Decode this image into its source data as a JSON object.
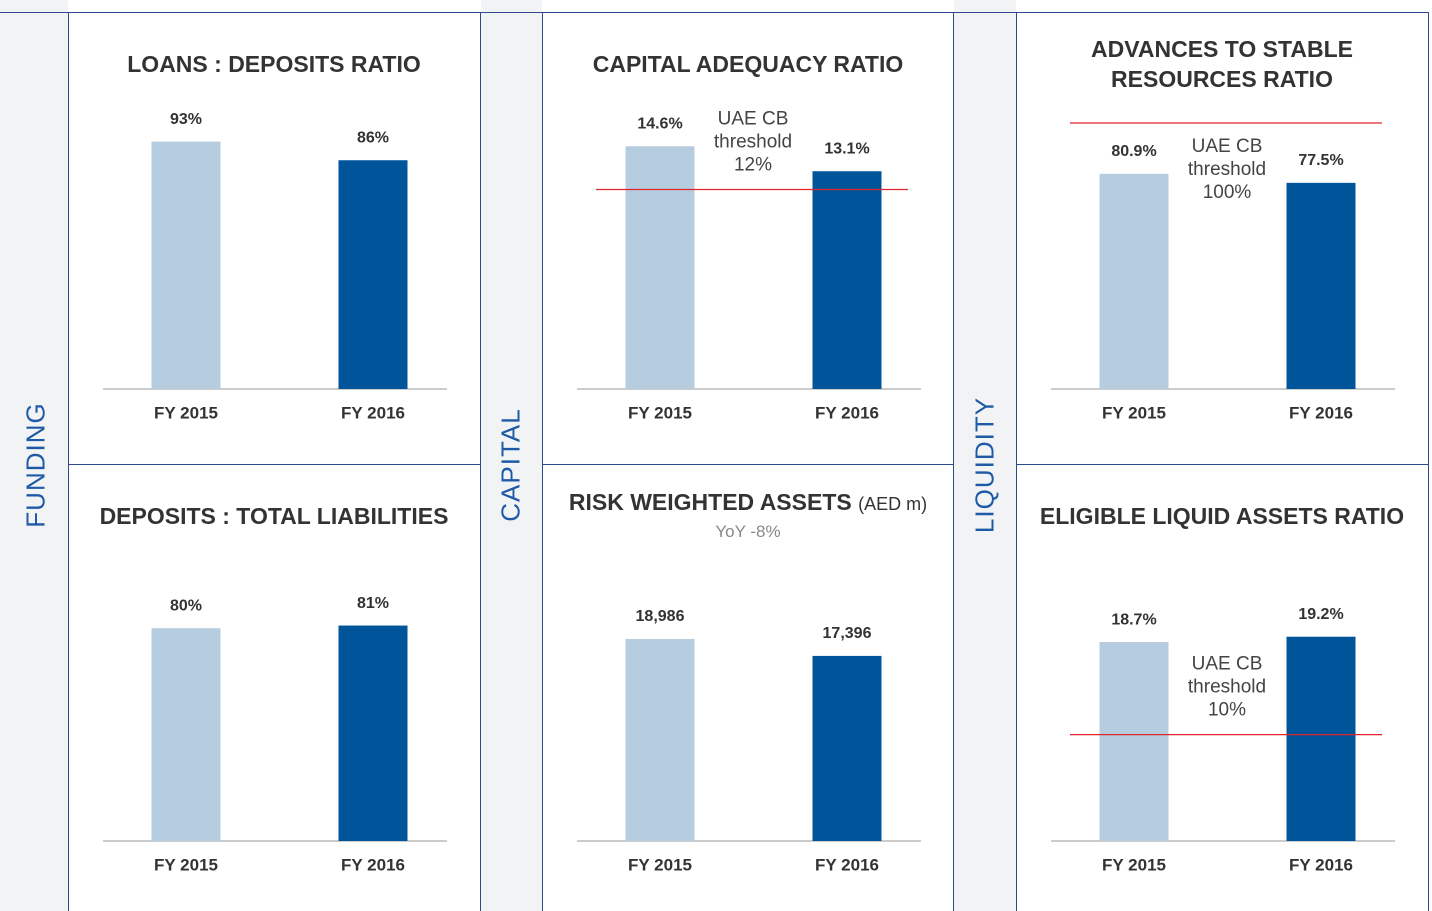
{
  "sections": [
    "FUNDING",
    "CAPITAL",
    "LIQUIDITY"
  ],
  "chart_data": [
    {
      "type": "bar",
      "title": "LOANS : DEPOSITS RATIO",
      "categories": [
        "FY 2015",
        "FY 2016"
      ],
      "values": [
        93,
        86
      ],
      "value_labels": [
        "93%",
        "86%"
      ],
      "colors": [
        "#b6cde0",
        "#005499"
      ],
      "ylim": [
        0,
        100
      ]
    },
    {
      "type": "bar",
      "title": "DEPOSITS : TOTAL LIABILITIES",
      "categories": [
        "FY 2015",
        "FY 2016"
      ],
      "values": [
        80,
        81
      ],
      "value_labels": [
        "80%",
        "81%"
      ],
      "colors": [
        "#b6cde0",
        "#005499"
      ],
      "ylim": [
        0,
        100
      ]
    },
    {
      "type": "bar",
      "title": "CAPITAL ADEQUACY RATIO",
      "categories": [
        "FY 2015",
        "FY 2016"
      ],
      "values": [
        14.6,
        13.1
      ],
      "value_labels": [
        "14.6%",
        "13.1%"
      ],
      "colors": [
        "#b6cde0",
        "#005499"
      ],
      "ylim": [
        0,
        16
      ],
      "threshold": {
        "value": 12,
        "lines": [
          "UAE CB",
          "threshold",
          "12%"
        ],
        "color": "#e0242b"
      }
    },
    {
      "type": "bar",
      "title": "RISK WEIGHTED ASSETS",
      "title_unit": "(AED m)",
      "subtitle": "YoY -8%",
      "categories": [
        "FY 2015",
        "FY 2016"
      ],
      "values": [
        18986,
        17396
      ],
      "value_labels": [
        "18,986",
        "17,396"
      ],
      "colors": [
        "#b6cde0",
        "#005499"
      ],
      "ylim": [
        0,
        25000
      ]
    },
    {
      "type": "bar",
      "title": "ADVANCES TO STABLE RESOURCES RATIO",
      "categories": [
        "FY 2015",
        "FY 2016"
      ],
      "values": [
        80.9,
        77.5
      ],
      "value_labels": [
        "80.9%",
        "77.5%"
      ],
      "colors": [
        "#b6cde0",
        "#005499"
      ],
      "ylim": [
        0,
        100
      ],
      "threshold": {
        "value": 100,
        "lines": [
          "UAE CB",
          "threshold",
          "100%"
        ],
        "color": "#e0242b"
      }
    },
    {
      "type": "bar",
      "title": "ELIGIBLE LIQUID ASSETS RATIO",
      "categories": [
        "FY 2015",
        "FY 2016"
      ],
      "values": [
        18.7,
        19.2
      ],
      "value_labels": [
        "18.7%",
        "19.2%"
      ],
      "colors": [
        "#b6cde0",
        "#005499"
      ],
      "ylim": [
        0,
        25
      ],
      "threshold": {
        "value": 10,
        "lines": [
          "UAE CB",
          "threshold",
          "10%"
        ],
        "color": "#e0242b"
      }
    }
  ]
}
